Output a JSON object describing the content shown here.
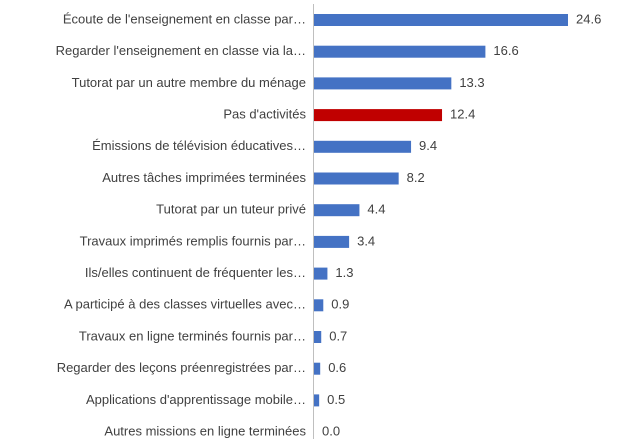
{
  "chart_data": {
    "type": "barh",
    "categories": [
      "Écoute de l'enseignement en classe par…",
      "Regarder l'enseignement en classe via la…",
      "Tutorat par un autre membre du ménage",
      "Pas d'activités",
      "Émissions de télévision éducatives…",
      "Autres tâches imprimées terminées",
      "Tutorat par un tuteur privé",
      "Travaux imprimés remplis fournis par…",
      "Ils/elles continuent de fréquenter les…",
      "A participé à des classes virtuelles avec…",
      "Travaux en ligne terminés fournis par…",
      "Regarder des leçons préenregistrées par…",
      "Applications d'apprentissage mobile…",
      "Autres missions en ligne terminées"
    ],
    "values": [
      24.6,
      16.6,
      13.3,
      12.4,
      9.4,
      8.2,
      4.4,
      3.4,
      1.3,
      0.9,
      0.7,
      0.6,
      0.5,
      0.0
    ],
    "value_labels": [
      "24.6",
      "16.6",
      "13.3",
      "12.4",
      "9.4",
      "8.2",
      "4.4",
      "3.4",
      "1.3",
      "0.9",
      "0.7",
      "0.6",
      "0.5",
      "0.0"
    ],
    "colors": [
      "#4472c4",
      "#4472c4",
      "#4472c4",
      "#c00000",
      "#4472c4",
      "#4472c4",
      "#4472c4",
      "#4472c4",
      "#4472c4",
      "#4472c4",
      "#4472c4",
      "#4472c4",
      "#4472c4",
      "#4472c4"
    ]
  }
}
